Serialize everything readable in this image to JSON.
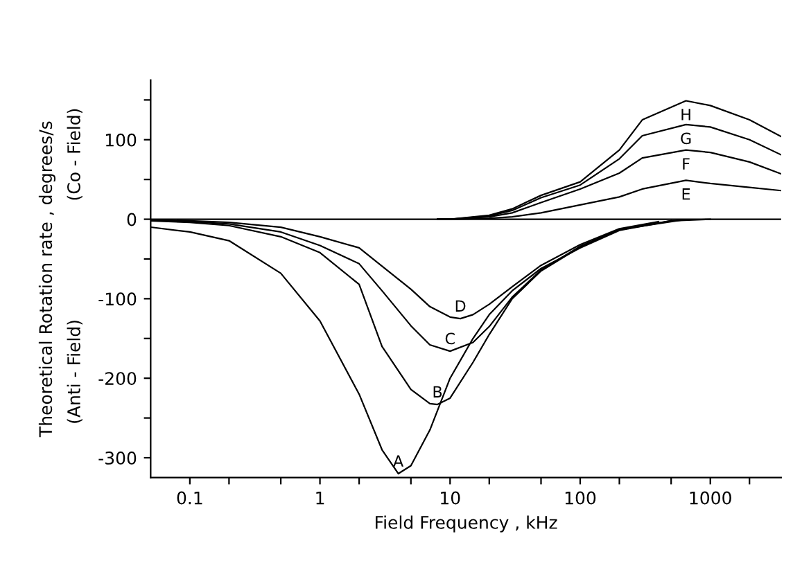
{
  "chart_data": {
    "type": "line",
    "xlabel": "Field Frequency , kHz",
    "ylabel": "Theoretical Rotation rate , degrees/s",
    "annotations": [
      "(Co - Field)",
      "(Anti - Field)"
    ],
    "log": "x",
    "xlim": [
      0.05,
      3500
    ],
    "ylim": [
      -325,
      175
    ],
    "xticks": [
      {
        "value": 0.1,
        "label": "0.1"
      },
      {
        "value": 0.2,
        "label": null
      },
      {
        "value": 0.5,
        "label": null
      },
      1,
      {
        "value": 2,
        "label": null
      },
      {
        "value": 5,
        "label": null
      },
      10,
      {
        "value": 20,
        "label": null
      },
      {
        "value": 50,
        "label": null
      },
      100,
      {
        "value": 200,
        "label": null
      },
      {
        "value": 500,
        "label": null
      },
      1000,
      {
        "value": 2000,
        "label": null
      }
    ],
    "yticks": [
      {
        "value": 150,
        "label": null
      },
      100,
      {
        "value": 50,
        "label": null
      },
      0,
      {
        "value": -50,
        "label": null
      },
      -100,
      {
        "value": -150,
        "label": null
      },
      -200,
      {
        "value": -250,
        "label": null
      },
      -300
    ],
    "grid": false,
    "legend": false,
    "marker": "none",
    "line_style": "solid",
    "ref_lines": [
      {
        "axis": "y",
        "value": 0,
        "label": null,
        "color": "#000000"
      }
    ],
    "series": [
      {
        "name": "A",
        "color": "#000000",
        "x": [
          0.05,
          0.1,
          0.2,
          0.5,
          1,
          2,
          3,
          4,
          5,
          7,
          10,
          15,
          20,
          30,
          50,
          100,
          200,
          500,
          1000
        ],
        "values": [
          -10,
          -16,
          -27,
          -68,
          -128,
          -220,
          -290,
          -320,
          -310,
          -265,
          -200,
          -150,
          -120,
          -90,
          -62,
          -36,
          -14,
          -2,
          0
        ]
      },
      {
        "name": "B",
        "color": "#000000",
        "x": [
          0.05,
          0.1,
          0.2,
          0.5,
          1,
          2,
          3,
          5,
          7,
          8,
          10,
          15,
          20,
          30,
          50,
          100,
          200,
          500
        ],
        "values": [
          -2,
          -4,
          -8,
          -22,
          -42,
          -82,
          -160,
          -214,
          -232,
          -233,
          -225,
          -180,
          -145,
          -100,
          -65,
          -35,
          -13,
          -2
        ]
      },
      {
        "name": "C",
        "color": "#000000",
        "x": [
          0.05,
          0.1,
          0.2,
          0.5,
          1,
          2,
          3,
          5,
          7,
          10,
          15,
          20,
          30,
          50,
          100,
          200,
          600
        ],
        "values": [
          -1,
          -3,
          -6,
          -16,
          -33,
          -56,
          -90,
          -134,
          -158,
          -166,
          -155,
          -135,
          -98,
          -64,
          -34,
          -13,
          -1
        ]
      },
      {
        "name": "D",
        "color": "#000000",
        "x": [
          0.05,
          0.1,
          0.2,
          0.5,
          1,
          2,
          3,
          5,
          7,
          10,
          12,
          15,
          20,
          30,
          50,
          100,
          200,
          400
        ],
        "values": [
          -1,
          -2,
          -4,
          -10,
          -22,
          -36,
          -59,
          -88,
          -110,
          -123,
          -125,
          -120,
          -107,
          -85,
          -58,
          -32,
          -12,
          -3
        ]
      },
      {
        "name": "E",
        "color": "#000000",
        "x": [
          8,
          10,
          20,
          30,
          50,
          100,
          200,
          300,
          650,
          1000,
          2000,
          3500
        ],
        "values": [
          0,
          0,
          1,
          3,
          8,
          18,
          28,
          38,
          49,
          45,
          40,
          36
        ]
      },
      {
        "name": "F",
        "color": "#000000",
        "x": [
          8,
          10,
          20,
          30,
          50,
          100,
          200,
          300,
          650,
          1000,
          2000,
          3500
        ],
        "values": [
          0,
          0,
          3,
          8,
          21,
          38,
          58,
          77,
          87,
          84,
          72,
          57
        ]
      },
      {
        "name": "G",
        "color": "#000000",
        "x": [
          8,
          10,
          20,
          30,
          50,
          100,
          200,
          300,
          650,
          1000,
          2000,
          3500
        ],
        "values": [
          0,
          0,
          4,
          11,
          27,
          43,
          76,
          105,
          119,
          116,
          100,
          81
        ]
      },
      {
        "name": "H",
        "color": "#000000",
        "x": [
          8,
          10,
          20,
          30,
          50,
          100,
          200,
          300,
          650,
          1000,
          2000,
          3500
        ],
        "values": [
          0,
          0,
          5,
          13,
          30,
          47,
          87,
          125,
          149,
          143,
          125,
          104
        ]
      }
    ]
  }
}
